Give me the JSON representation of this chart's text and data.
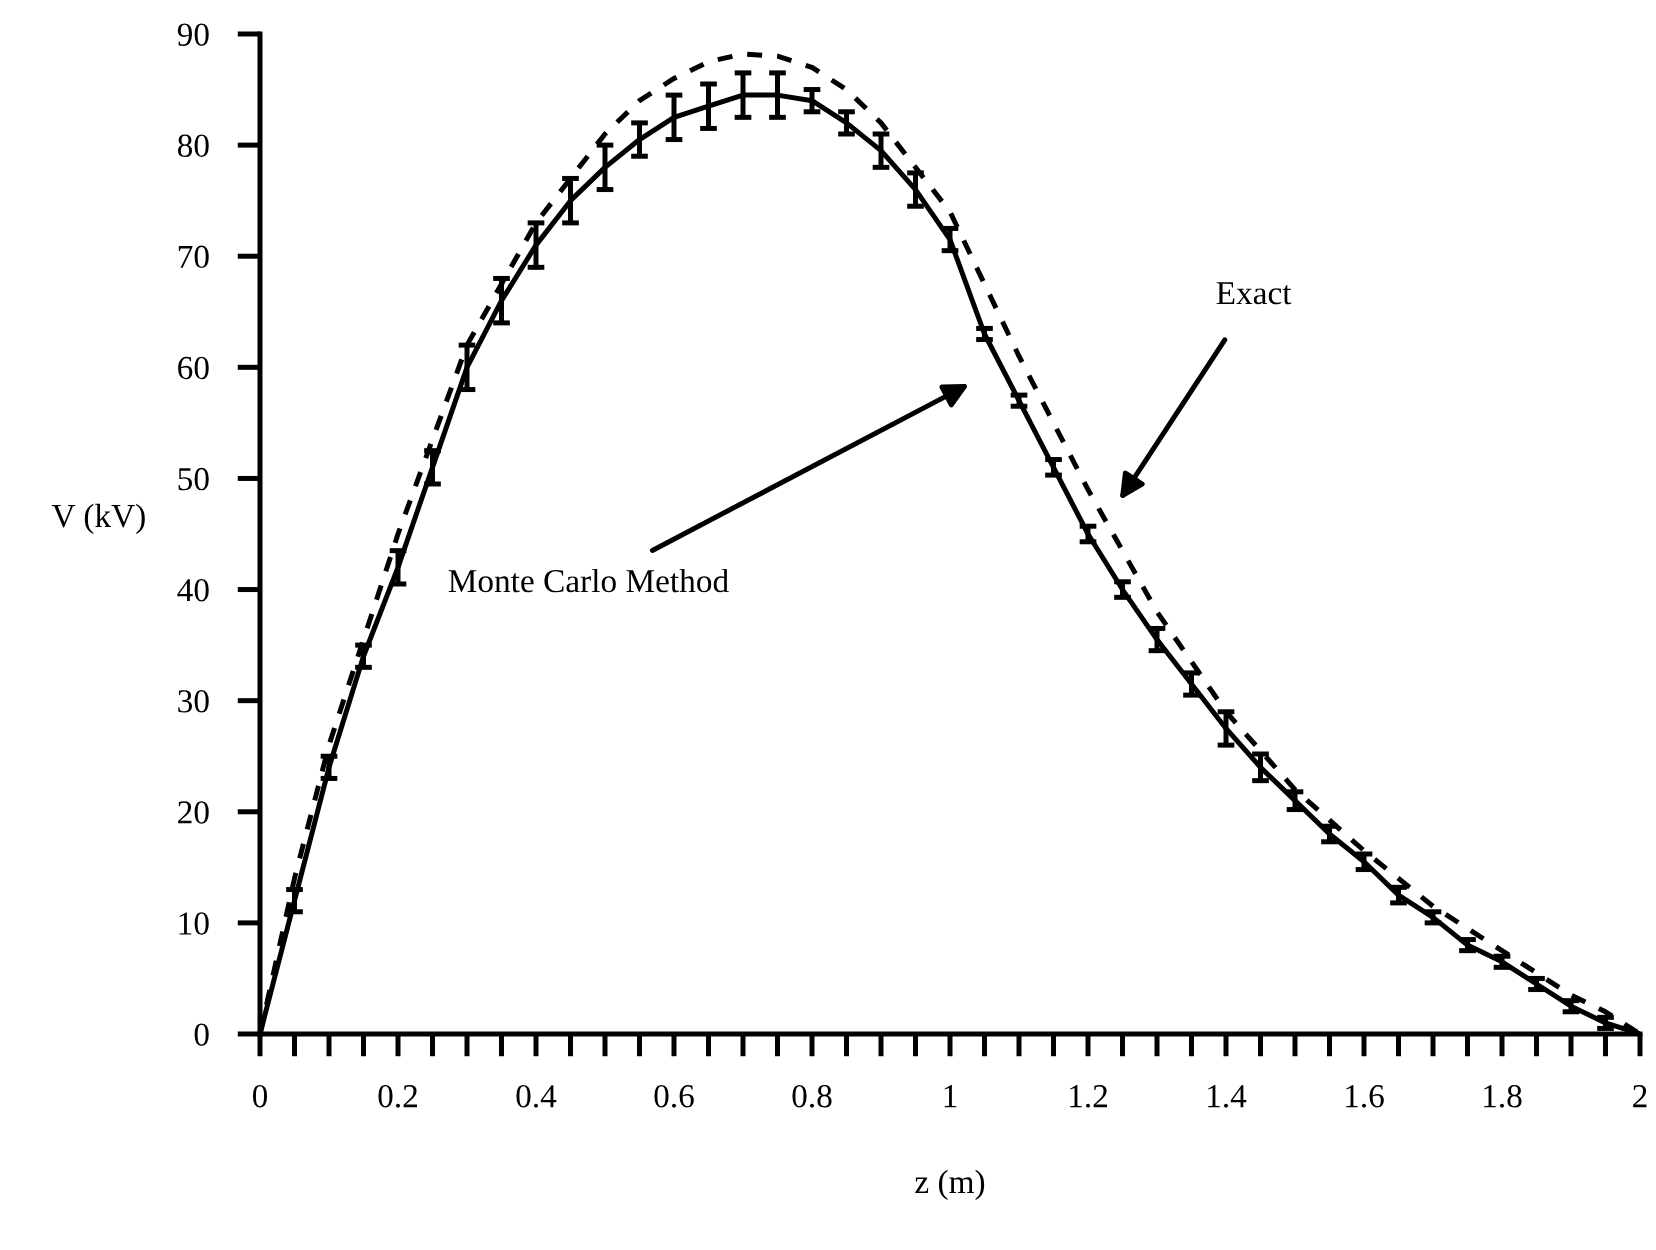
{
  "chart_data": {
    "type": "line",
    "xlabel": "z (m)",
    "ylabel": "V (kV)",
    "xlim": [
      0,
      2
    ],
    "ylim": [
      0,
      90
    ],
    "xticks": [
      0,
      {
        "value": 0.05,
        "label": null
      },
      {
        "value": 0.1,
        "label": null
      },
      {
        "value": 0.15,
        "label": null
      },
      0.2,
      {
        "value": 0.25,
        "label": null
      },
      {
        "value": 0.3,
        "label": null
      },
      {
        "value": 0.35,
        "label": null
      },
      0.4,
      {
        "value": 0.45,
        "label": null
      },
      {
        "value": 0.5,
        "label": null
      },
      {
        "value": 0.55,
        "label": null
      },
      0.6,
      {
        "value": 0.65,
        "label": null
      },
      {
        "value": 0.7,
        "label": null
      },
      {
        "value": 0.75,
        "label": null
      },
      0.8,
      {
        "value": 0.85,
        "label": null
      },
      {
        "value": 0.9,
        "label": null
      },
      {
        "value": 0.95,
        "label": null
      },
      1,
      {
        "value": 1.05,
        "label": null
      },
      {
        "value": 1.1,
        "label": null
      },
      {
        "value": 1.15,
        "label": null
      },
      1.2,
      {
        "value": 1.25,
        "label": null
      },
      {
        "value": 1.3,
        "label": null
      },
      {
        "value": 1.35,
        "label": null
      },
      1.4,
      {
        "value": 1.45,
        "label": null
      },
      {
        "value": 1.5,
        "label": null
      },
      {
        "value": 1.55,
        "label": null
      },
      1.6,
      {
        "value": 1.65,
        "label": null
      },
      {
        "value": 1.7,
        "label": null
      },
      {
        "value": 1.75,
        "label": null
      },
      1.8,
      {
        "value": 1.85,
        "label": null
      },
      {
        "value": 1.9,
        "label": null
      },
      {
        "value": 1.95,
        "label": null
      },
      2
    ],
    "yticks": [
      0,
      10,
      20,
      30,
      40,
      50,
      60,
      70,
      80,
      90
    ],
    "grid": false,
    "series": [
      {
        "color": "#000000",
        "line_style": "solid",
        "marker": "none",
        "x": [
          0,
          0.05,
          0.1,
          0.15,
          0.2,
          0.25,
          0.3,
          0.35,
          0.4,
          0.45,
          0.5,
          0.55,
          0.6,
          0.65,
          0.7,
          0.75,
          0.8,
          0.85,
          0.9,
          0.95,
          1.0,
          1.05,
          1.1,
          1.15,
          1.2,
          1.25,
          1.3,
          1.35,
          1.4,
          1.45,
          1.5,
          1.55,
          1.6,
          1.65,
          1.7,
          1.75,
          1.8,
          1.85,
          1.9,
          1.95,
          2.0
        ],
        "values": [
          0,
          12,
          24,
          34,
          42,
          51,
          60,
          66,
          71,
          75,
          78,
          80.5,
          82.5,
          83.5,
          84.5,
          84.5,
          84,
          82,
          79.5,
          76,
          71.5,
          63,
          57,
          51,
          45,
          40,
          35.5,
          31.5,
          27.5,
          24,
          21,
          18,
          15.5,
          12.5,
          10.5,
          8,
          6.5,
          4.5,
          2.5,
          1,
          0
        ],
        "errors": [
          null,
          1,
          1,
          1,
          1.5,
          1.5,
          2,
          2,
          2,
          2,
          2,
          1.5,
          2,
          2,
          2,
          2,
          1,
          1,
          1.5,
          1.5,
          1,
          0.5,
          0.5,
          0.7,
          0.7,
          0.7,
          1,
          1,
          1.5,
          1.2,
          0.8,
          0.7,
          0.7,
          0.7,
          0.5,
          0.5,
          0.5,
          0.5,
          0.5,
          0.5,
          null
        ]
      },
      {
        "color": "#000000",
        "line_style": "dashed",
        "marker": "none",
        "x": [
          0,
          0.05,
          0.1,
          0.2,
          0.3,
          0.4,
          0.5,
          0.55,
          0.6,
          0.65,
          0.7,
          0.75,
          0.8,
          0.85,
          0.9,
          1.0,
          1.1,
          1.2,
          1.3,
          1.4,
          1.5,
          1.6,
          1.7,
          1.8,
          1.9,
          1.95,
          2.0
        ],
        "values": [
          0,
          14,
          26,
          45,
          62,
          73,
          81,
          84,
          86,
          87.5,
          88.2,
          88,
          87,
          85,
          82,
          74,
          61,
          49,
          38,
          29,
          22,
          16.5,
          11.5,
          7.5,
          3.5,
          2,
          0
        ]
      }
    ],
    "annotations": [
      "Monte Carlo Method",
      "Exact"
    ]
  }
}
